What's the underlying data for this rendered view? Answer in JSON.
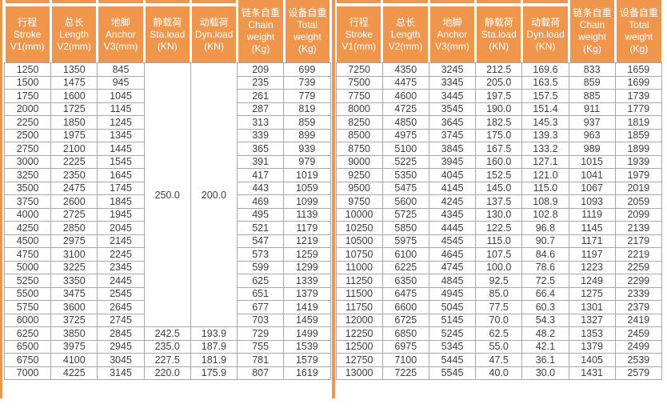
{
  "colors": {
    "accent": "#F0964C",
    "border": "#A8A8A8",
    "text": "#3D3D3D",
    "header_text": "#FFFFFF",
    "background": "#FFFFFF"
  },
  "columns": [
    {
      "key": "stroke",
      "tall": false,
      "lines": [
        "行程",
        "Stroke",
        "V1(mm)"
      ]
    },
    {
      "key": "length",
      "tall": false,
      "lines": [
        "总长",
        "Length",
        "V2(mm)"
      ]
    },
    {
      "key": "anchor",
      "tall": false,
      "lines": [
        "地脚",
        "Anchor",
        "V3(mm)"
      ]
    },
    {
      "key": "sta-load",
      "tall": false,
      "lines": [
        "静载荷",
        "Sta.load",
        "(KN)"
      ]
    },
    {
      "key": "dyn-load",
      "tall": false,
      "lines": [
        "动载荷",
        "Dyn.load",
        "(KN)"
      ]
    },
    {
      "key": "chain-weight",
      "tall": true,
      "lines": [
        "链条自重",
        "Chain",
        "weight",
        "(Kg)"
      ]
    },
    {
      "key": "total-weight",
      "tall": true,
      "lines": [
        "设备自重",
        "Total",
        "weight",
        "(Kg)"
      ]
    }
  ],
  "tables": [
    {
      "merged_cells": [
        {
          "col": 3,
          "row_start": 0,
          "row_span": 20,
          "value": "250.0"
        },
        {
          "col": 4,
          "row_start": 0,
          "row_span": 20,
          "value": "200.0"
        }
      ],
      "rows": [
        [
          "1250",
          "1350",
          "845",
          null,
          null,
          "209",
          "699"
        ],
        [
          "1500",
          "1475",
          "945",
          null,
          null,
          "235",
          "739"
        ],
        [
          "1750",
          "1600",
          "1045",
          null,
          null,
          "261",
          "779"
        ],
        [
          "2000",
          "1725",
          "1145",
          null,
          null,
          "287",
          "819"
        ],
        [
          "2250",
          "1850",
          "1245",
          null,
          null,
          "313",
          "859"
        ],
        [
          "2500",
          "1975",
          "1345",
          null,
          null,
          "339",
          "899"
        ],
        [
          "2750",
          "2100",
          "1445",
          null,
          null,
          "365",
          "939"
        ],
        [
          "3000",
          "2225",
          "1545",
          null,
          null,
          "391",
          "979"
        ],
        [
          "3250",
          "2350",
          "1645",
          null,
          null,
          "417",
          "1019"
        ],
        [
          "3500",
          "2475",
          "1745",
          null,
          null,
          "443",
          "1059"
        ],
        [
          "3750",
          "2600",
          "1845",
          null,
          null,
          "469",
          "1099"
        ],
        [
          "4000",
          "2725",
          "1945",
          null,
          null,
          "495",
          "1139"
        ],
        [
          "4250",
          "2850",
          "2045",
          null,
          null,
          "521",
          "1179"
        ],
        [
          "4500",
          "2975",
          "2145",
          null,
          null,
          "547",
          "1219"
        ],
        [
          "4750",
          "3100",
          "2245",
          null,
          null,
          "573",
          "1259"
        ],
        [
          "5000",
          "3225",
          "2345",
          null,
          null,
          "599",
          "1299"
        ],
        [
          "5250",
          "3350",
          "2445",
          null,
          null,
          "625",
          "1339"
        ],
        [
          "5500",
          "3475",
          "2545",
          null,
          null,
          "651",
          "1379"
        ],
        [
          "5750",
          "3600",
          "2645",
          null,
          null,
          "677",
          "1419"
        ],
        [
          "6000",
          "3725",
          "2745",
          null,
          null,
          "703",
          "1459"
        ],
        [
          "6250",
          "3850",
          "2845",
          "242.5",
          "193.9",
          "729",
          "1499"
        ],
        [
          "6500",
          "3975",
          "2945",
          "235.0",
          "187.9",
          "755",
          "1539"
        ],
        [
          "6750",
          "4100",
          "3045",
          "227.5",
          "181.9",
          "781",
          "1579"
        ],
        [
          "7000",
          "4225",
          "3145",
          "220.0",
          "175.9",
          "807",
          "1619"
        ]
      ]
    },
    {
      "merged_cells": [],
      "rows": [
        [
          "7250",
          "4350",
          "3245",
          "212.5",
          "169.6",
          "833",
          "1659"
        ],
        [
          "7500",
          "4475",
          "3345",
          "205.0",
          "163.5",
          "859",
          "1699"
        ],
        [
          "7750",
          "4600",
          "3445",
          "197.5",
          "157.5",
          "885",
          "1739"
        ],
        [
          "8000",
          "4725",
          "3545",
          "190.0",
          "151.4",
          "911",
          "1779"
        ],
        [
          "8250",
          "4850",
          "3645",
          "182.5",
          "145.3",
          "937",
          "1819"
        ],
        [
          "8500",
          "4975",
          "3745",
          "175.0",
          "139.3",
          "963",
          "1859"
        ],
        [
          "8750",
          "5100",
          "3845",
          "167.5",
          "133.2",
          "989",
          "1899"
        ],
        [
          "9000",
          "5225",
          "3945",
          "160.0",
          "127.1",
          "1015",
          "1939"
        ],
        [
          "9250",
          "5350",
          "4045",
          "152.5",
          "121.0",
          "1041",
          "1979"
        ],
        [
          "9500",
          "5475",
          "4145",
          "145.0",
          "115.0",
          "1067",
          "2019"
        ],
        [
          "9750",
          "5600",
          "4245",
          "137.5",
          "108.9",
          "1093",
          "2059"
        ],
        [
          "10000",
          "5725",
          "4345",
          "130.0",
          "102.8",
          "1119",
          "2099"
        ],
        [
          "10250",
          "5850",
          "4445",
          "122.5",
          "96.8",
          "1145",
          "2139"
        ],
        [
          "10500",
          "5975",
          "4545",
          "115.0",
          "90.7",
          "1171",
          "2179"
        ],
        [
          "10750",
          "6100",
          "4645",
          "107.5",
          "84.6",
          "1197",
          "2219"
        ],
        [
          "11000",
          "6225",
          "4745",
          "100.0",
          "78.6",
          "1223",
          "2259"
        ],
        [
          "11250",
          "6350",
          "4845",
          "92.5",
          "72.5",
          "1249",
          "2299"
        ],
        [
          "11500",
          "6475",
          "4945",
          "85.0",
          "66.4",
          "1275",
          "2339"
        ],
        [
          "11750",
          "6600",
          "5045",
          "77.5",
          "60.3",
          "1301",
          "2379"
        ],
        [
          "12000",
          "6725",
          "5145",
          "70.0",
          "54.3",
          "1327",
          "2419"
        ],
        [
          "12250",
          "6850",
          "5245",
          "62.5",
          "48.2",
          "1353",
          "2459"
        ],
        [
          "12500",
          "6975",
          "5345",
          "55.0",
          "42.1",
          "1379",
          "2499"
        ],
        [
          "12750",
          "7100",
          "5445",
          "47.5",
          "36.1",
          "1405",
          "2539"
        ],
        [
          "13000",
          "7225",
          "5545",
          "40.0",
          "30.0",
          "1431",
          "2579"
        ]
      ]
    }
  ]
}
